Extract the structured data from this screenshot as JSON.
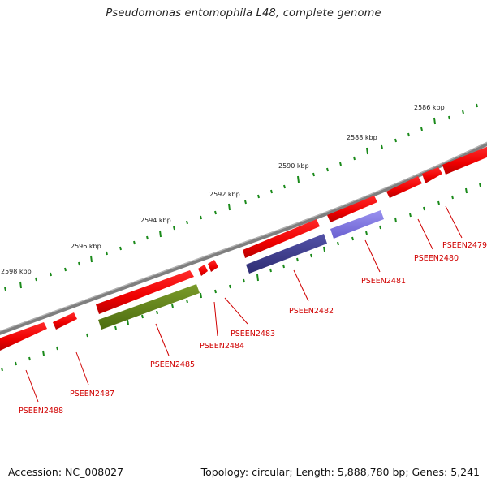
{
  "title": "Pseudomonas entomophila L48, complete genome",
  "footer": {
    "accession": "Accession: NC_008027",
    "topology": "Topology: circular; Length: 5,888,780 bp; Genes: 5,241"
  },
  "kbp_labels": [
    "2598 kbp",
    "2596 kbp",
    "2594 kbp",
    "2592 kbp",
    "2590 kbp",
    "2588 kbp",
    "2586 kbp"
  ],
  "gene_labels": [
    "PSEEN2488",
    "PSEEN2487",
    "PSEEN2485",
    "PSEEN2484",
    "PSEEN2483",
    "PSEEN2482",
    "PSEEN2481",
    "PSEEN2480",
    "PSEEN2479"
  ],
  "colors": {
    "forward_gene": "#ff0000",
    "reverse_gene_green": "#5a7f14",
    "reverse_gene_navy": "#3b3a8a",
    "reverse_gene_violet": "#7a70e0",
    "label": "#d00000",
    "tick": "#1a8a1a",
    "backbone": "#808080"
  }
}
